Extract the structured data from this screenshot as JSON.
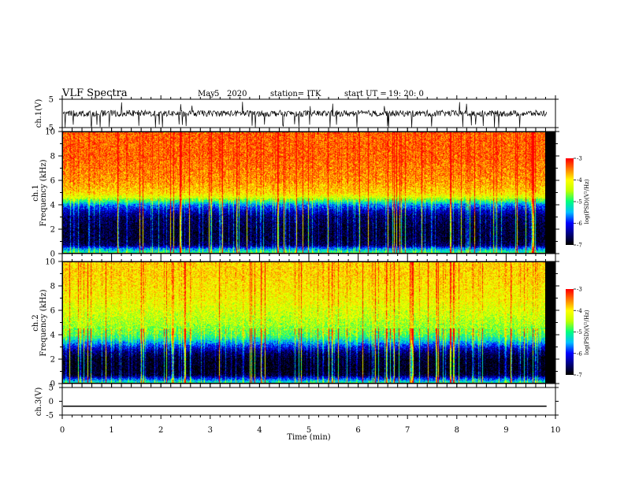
{
  "header": {
    "title": "VLF Spectra",
    "date_month": "May",
    "date_day": "5",
    "date_year": "2020",
    "station": "station= ITK",
    "start_prefix": "start  UT  =",
    "start_time": "19: 20: 0"
  },
  "colors": {
    "spectrogram_scale": [
      "#000000",
      "#000080",
      "#0000ff",
      "#00c0ff",
      "#00ff80",
      "#c0ff00",
      "#ffff00",
      "#ff8000",
      "#ff0000"
    ],
    "trace": "#000000"
  },
  "chart_data": [
    {
      "type": "line",
      "name": "ch1-waveform",
      "ylabel": "ch.1(V)",
      "ylim": [
        -5,
        5
      ],
      "yticks": [
        "5",
        "-5"
      ],
      "xlim": [
        0,
        10
      ],
      "baseline": 0,
      "note_level": "noisy trace around 0 V with spikes to about -5 V"
    },
    {
      "type": "heatmap",
      "name": "ch1-spectrogram",
      "ylabel_line1": "ch.1",
      "ylabel_line2": "Frequency (kHz)",
      "ylim": [
        0,
        10
      ],
      "yticks": [
        "0",
        "2",
        "4",
        "6",
        "8",
        "10"
      ],
      "xlim": [
        0,
        10
      ],
      "colorbar": {
        "label": "log(PSD)(V²/Hz)",
        "range": [
          -7,
          -3
        ],
        "ticks": [
          "-3",
          "-4",
          "-5",
          "-6",
          "-7"
        ]
      },
      "profile_freq_kHz": [
        0,
        0.3,
        0.6,
        1,
        2,
        3,
        3.5,
        4,
        4.3,
        4.6,
        5,
        6,
        7,
        8,
        9,
        10
      ],
      "profile_logpsd": [
        -5.0,
        -5.6,
        -6.6,
        -6.8,
        -6.8,
        -6.6,
        -6.2,
        -5.6,
        -4.9,
        -4.3,
        -3.9,
        -3.6,
        -3.5,
        -3.4,
        -3.4,
        -3.4
      ]
    },
    {
      "type": "heatmap",
      "name": "ch2-spectrogram",
      "ylabel_line1": "ch.2",
      "ylabel_line2": "Frequency (kHz)",
      "ylim": [
        0,
        10
      ],
      "yticks": [
        "0",
        "2",
        "4",
        "6",
        "8",
        "10"
      ],
      "xlim": [
        0,
        10
      ],
      "colorbar": {
        "label": "log(PSD)(V²/Hz)",
        "range": [
          -7,
          -3
        ],
        "ticks": [
          "-3",
          "-4",
          "-5",
          "-6",
          "-7"
        ]
      },
      "profile_freq_kHz": [
        0,
        0.3,
        0.6,
        1,
        2,
        2.6,
        3,
        3.5,
        4,
        5,
        6,
        7,
        8,
        9,
        10
      ],
      "profile_logpsd": [
        -5.2,
        -5.9,
        -6.8,
        -7.0,
        -6.9,
        -6.5,
        -6.0,
        -5.3,
        -4.8,
        -4.5,
        -4.3,
        -4.1,
        -4.0,
        -3.9,
        -3.9
      ]
    },
    {
      "type": "line",
      "name": "ch3-waveform",
      "ylabel": "ch.3(V)",
      "ylim": [
        -5,
        5
      ],
      "yticks": [
        "5",
        "0",
        "-5"
      ],
      "xlim": [
        0,
        10
      ],
      "baseline": -1.8
    }
  ],
  "xaxis": {
    "label": "Time  (min)",
    "ticks": [
      "0",
      "1",
      "2",
      "3",
      "4",
      "5",
      "6",
      "7",
      "8",
      "9",
      "10"
    ],
    "data_end_min": 9.82
  }
}
